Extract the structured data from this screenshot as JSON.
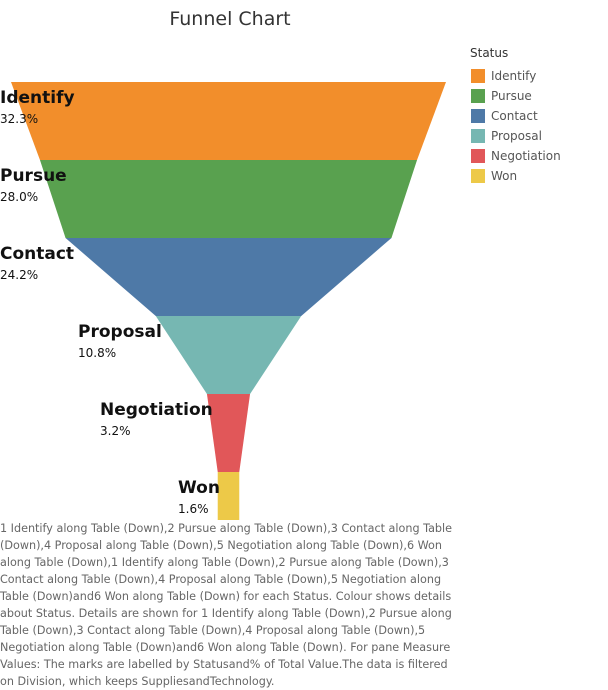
{
  "title": "Funnel Chart",
  "legend": {
    "title": "Status",
    "items": [
      {
        "label": "Identify",
        "color": "#F28E2B"
      },
      {
        "label": "Pursue",
        "color": "#59A14F"
      },
      {
        "label": "Contact",
        "color": "#4E79A7"
      },
      {
        "label": "Proposal",
        "color": "#76B7B2"
      },
      {
        "label": "Negotiation",
        "color": "#E15759"
      },
      {
        "label": "Won",
        "color": "#EDC948"
      }
    ]
  },
  "chart_data": {
    "type": "funnel",
    "title": "Funnel Chart",
    "categories": [
      "Identify",
      "Pursue",
      "Contact",
      "Proposal",
      "Negotiation",
      "Won"
    ],
    "values": [
      32.3,
      28.0,
      24.2,
      10.8,
      3.2,
      1.6
    ],
    "labels": [
      "32.3%",
      "28.0%",
      "24.2%",
      "10.8%",
      "3.2%",
      "1.6%"
    ],
    "colors": [
      "#F28E2B",
      "#59A14F",
      "#4E79A7",
      "#76B7B2",
      "#E15759",
      "#EDC948"
    ],
    "legend_position": "right"
  },
  "caption": "1 Identify along Table (Down),2 Pursue along Table (Down),3 Contact along Table (Down),4 Proposal along Table (Down),5 Negotiation along Table (Down),6 Won along Table (Down),1 Identify along Table (Down),2 Pursue along Table (Down),3 Contact along Table (Down),4 Proposal along Table (Down),5 Negotiation along Table (Down)and6 Won along Table (Down) for each Status. Colour shows details about Status. Details are shown for 1 Identify along Table (Down),2 Pursue along Table (Down),3 Contact along Table (Down),4 Proposal along Table (Down),5 Negotiation along Table (Down)and6 Won along Table (Down). For pane Measure Values: The marks are labelled by Statusand% of Total Value.The data is filtered on Division, which keeps SuppliesandTechnology."
}
